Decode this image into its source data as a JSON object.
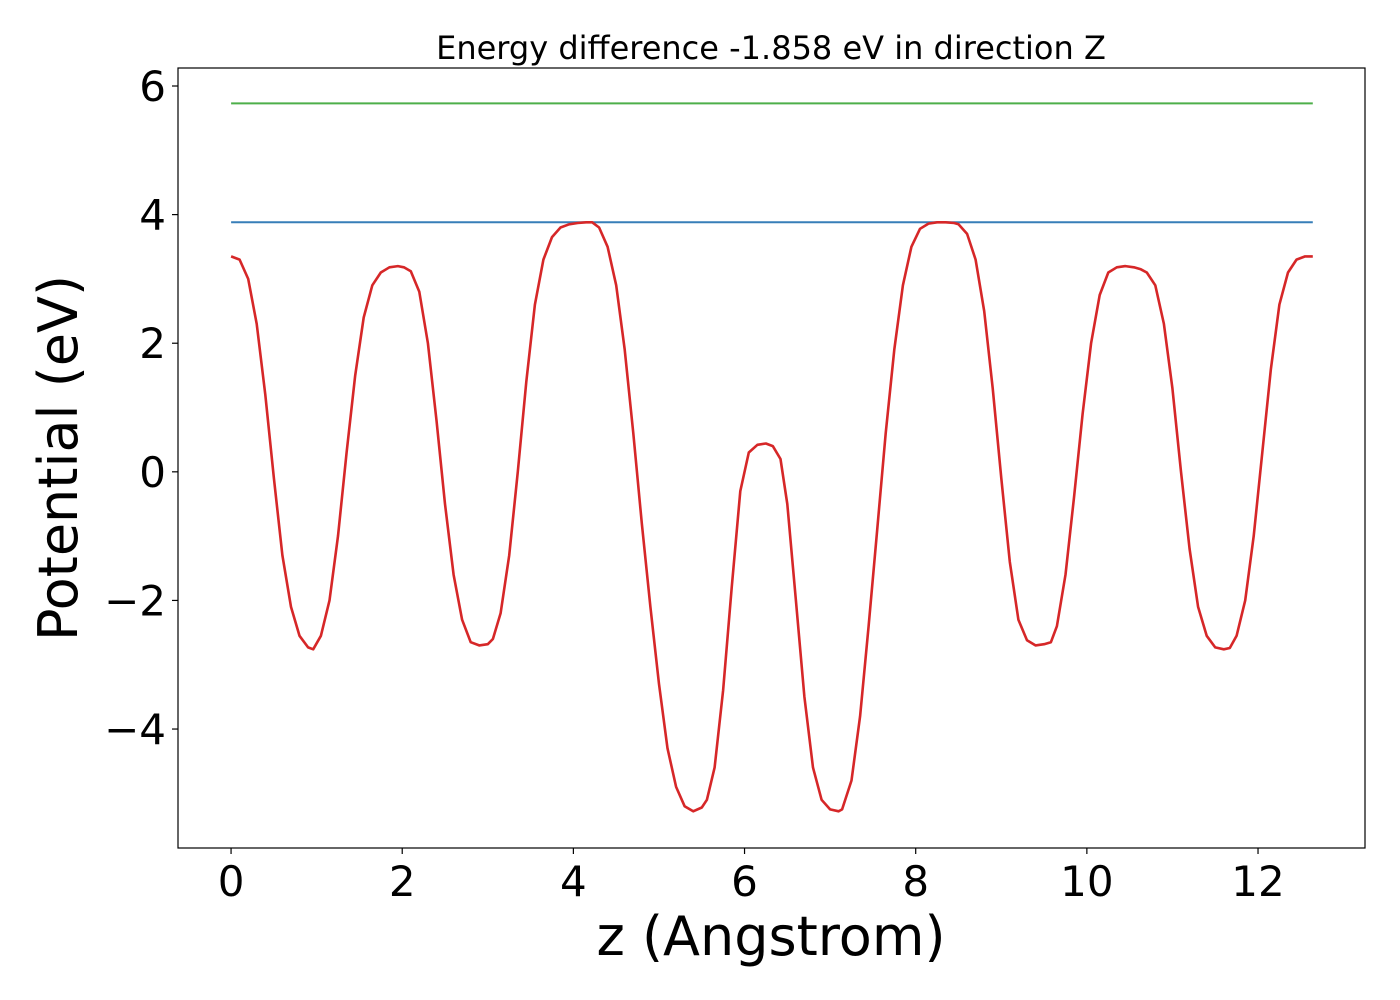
{
  "chart_data": {
    "type": "line",
    "title": "Energy difference -1.858 eV in direction Z",
    "xlabel": "z (Angstrom)",
    "ylabel": "Potential (eV)",
    "xlim": [
      -0.62,
      13.25
    ],
    "ylim": [
      -5.85,
      6.28
    ],
    "xticks": [
      0,
      2,
      4,
      6,
      8,
      10,
      12
    ],
    "xtick_labels": [
      "0",
      "2",
      "4",
      "6",
      "8",
      "10",
      "12"
    ],
    "yticks": [
      -4,
      -2,
      0,
      2,
      4,
      6
    ],
    "ytick_labels": [
      "−4",
      "−2",
      "0",
      "2",
      "4",
      "6"
    ],
    "grid": false,
    "series": [
      {
        "color": "#d62728",
        "x": [
          0,
          0.1,
          0.2,
          0.3,
          0.4,
          0.5,
          0.6,
          0.7,
          0.8,
          0.9,
          0.96,
          1.05,
          1.15,
          1.25,
          1.35,
          1.45,
          1.55,
          1.65,
          1.75,
          1.85,
          1.95,
          2.02,
          2.1,
          2.2,
          2.3,
          2.4,
          2.5,
          2.6,
          2.7,
          2.8,
          2.9,
          3.0,
          3.06,
          3.15,
          3.25,
          3.35,
          3.45,
          3.55,
          3.65,
          3.75,
          3.85,
          3.95,
          4.05,
          4.15,
          4.22,
          4.3,
          4.4,
          4.5,
          4.6,
          4.7,
          4.8,
          4.9,
          5.0,
          5.1,
          5.2,
          5.3,
          5.4,
          5.5,
          5.56,
          5.65,
          5.75,
          5.85,
          5.95,
          6.05,
          6.15,
          6.25,
          6.33,
          6.42,
          6.5,
          6.6,
          6.7,
          6.8,
          6.9,
          7.0,
          7.1,
          7.14,
          7.25,
          7.35,
          7.45,
          7.55,
          7.65,
          7.75,
          7.85,
          7.95,
          8.05,
          8.15,
          8.25,
          8.35,
          8.45,
          8.5,
          8.6,
          8.7,
          8.8,
          8.9,
          9.0,
          9.1,
          9.2,
          9.3,
          9.4,
          9.5,
          9.58,
          9.65,
          9.75,
          9.85,
          9.95,
          10.05,
          10.15,
          10.25,
          10.35,
          10.45,
          10.55,
          10.63,
          10.7,
          10.8,
          10.9,
          11.0,
          11.1,
          11.2,
          11.3,
          11.4,
          11.5,
          11.6,
          11.67,
          11.75,
          11.85,
          11.95,
          12.05,
          12.15,
          12.25,
          12.35,
          12.45,
          12.55,
          12.64
        ],
        "y": [
          3.35,
          3.3,
          3.0,
          2.3,
          1.2,
          -0.1,
          -1.3,
          -2.1,
          -2.55,
          -2.73,
          -2.76,
          -2.55,
          -2.0,
          -1.0,
          0.3,
          1.5,
          2.4,
          2.9,
          3.1,
          3.18,
          3.2,
          3.18,
          3.12,
          2.8,
          2.0,
          0.8,
          -0.5,
          -1.6,
          -2.3,
          -2.65,
          -2.7,
          -2.68,
          -2.6,
          -2.2,
          -1.3,
          0.0,
          1.4,
          2.6,
          3.3,
          3.65,
          3.8,
          3.85,
          3.87,
          3.88,
          3.88,
          3.8,
          3.5,
          2.9,
          1.9,
          0.6,
          -0.8,
          -2.1,
          -3.3,
          -4.3,
          -4.9,
          -5.2,
          -5.28,
          -5.22,
          -5.1,
          -4.6,
          -3.4,
          -1.8,
          -0.3,
          0.3,
          0.42,
          0.44,
          0.4,
          0.2,
          -0.5,
          -2.0,
          -3.5,
          -4.6,
          -5.1,
          -5.25,
          -5.28,
          -5.25,
          -4.8,
          -3.8,
          -2.4,
          -0.9,
          0.6,
          1.9,
          2.9,
          3.5,
          3.78,
          3.86,
          3.88,
          3.88,
          3.87,
          3.85,
          3.7,
          3.3,
          2.5,
          1.3,
          -0.1,
          -1.4,
          -2.3,
          -2.62,
          -2.7,
          -2.68,
          -2.65,
          -2.4,
          -1.6,
          -0.4,
          0.9,
          2.0,
          2.75,
          3.1,
          3.18,
          3.2,
          3.18,
          3.15,
          3.1,
          2.9,
          2.3,
          1.3,
          0.0,
          -1.2,
          -2.1,
          -2.55,
          -2.73,
          -2.76,
          -2.74,
          -2.55,
          -2.0,
          -1.0,
          0.3,
          1.6,
          2.6,
          3.1,
          3.3,
          3.35,
          3.35
        ]
      },
      {
        "color": "#377eb8",
        "x": [
          0,
          12.64
        ],
        "y": [
          3.88,
          3.88
        ]
      },
      {
        "color": "#4daf4a",
        "x": [
          0,
          12.64
        ],
        "y": [
          5.73,
          5.73
        ]
      }
    ]
  }
}
